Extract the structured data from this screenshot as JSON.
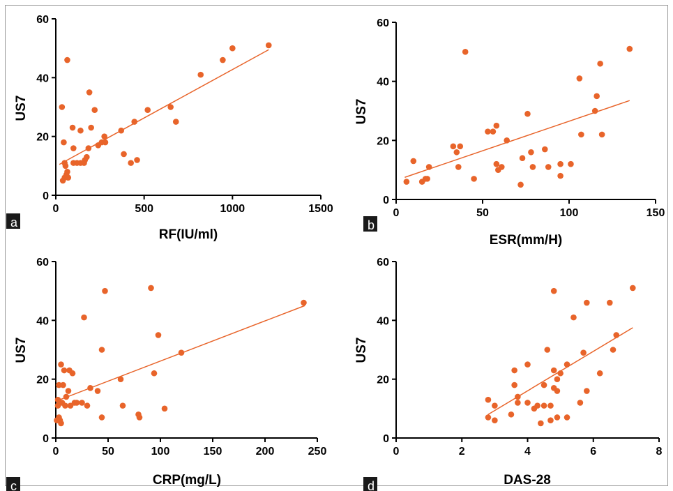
{
  "panels": [
    {
      "label": "a",
      "chart_data": {
        "type": "scatter",
        "xlabel": "RF(IU/ml)",
        "ylabel": "US7",
        "xlim": [
          0,
          1500
        ],
        "ylim": [
          0,
          60
        ],
        "xticks": [
          0,
          500,
          1000,
          1500
        ],
        "yticks": [
          0,
          20,
          40,
          60
        ],
        "grid": false,
        "point_color": "#e8642a",
        "line_color": "#e8642a",
        "points": [
          [
            35,
            30
          ],
          [
            65,
            46
          ],
          [
            45,
            18
          ],
          [
            50,
            11
          ],
          [
            55,
            10
          ],
          [
            40,
            5
          ],
          [
            50,
            6
          ],
          [
            60,
            7
          ],
          [
            65,
            8
          ],
          [
            70,
            6
          ],
          [
            95,
            23
          ],
          [
            100,
            16
          ],
          [
            100,
            11
          ],
          [
            120,
            11
          ],
          [
            140,
            22
          ],
          [
            140,
            11
          ],
          [
            160,
            11
          ],
          [
            165,
            12
          ],
          [
            175,
            13
          ],
          [
            185,
            16
          ],
          [
            190,
            35
          ],
          [
            200,
            23
          ],
          [
            220,
            29
          ],
          [
            240,
            17
          ],
          [
            260,
            18
          ],
          [
            275,
            20
          ],
          [
            280,
            18
          ],
          [
            370,
            22
          ],
          [
            385,
            14
          ],
          [
            425,
            11
          ],
          [
            445,
            25
          ],
          [
            460,
            12
          ],
          [
            520,
            29
          ],
          [
            650,
            30
          ],
          [
            680,
            25
          ],
          [
            820,
            41
          ],
          [
            945,
            46
          ],
          [
            1000,
            50
          ],
          [
            1205,
            51
          ]
        ],
        "fit_line": [
          [
            20,
            10.5
          ],
          [
            1205,
            49.5
          ]
        ]
      }
    },
    {
      "label": "b",
      "chart_data": {
        "type": "scatter",
        "xlabel": "ESR(mm/H)",
        "ylabel": "US7",
        "xlim": [
          0,
          150
        ],
        "ylim": [
          0,
          60
        ],
        "xticks": [
          0,
          50,
          100,
          150
        ],
        "yticks": [
          0,
          20,
          40,
          60
        ],
        "grid": false,
        "point_color": "#e8642a",
        "line_color": "#e8642a",
        "points": [
          [
            6,
            6
          ],
          [
            10,
            13
          ],
          [
            15,
            6
          ],
          [
            17,
            7
          ],
          [
            18,
            7
          ],
          [
            19,
            11
          ],
          [
            33,
            18
          ],
          [
            35,
            16
          ],
          [
            36,
            11
          ],
          [
            37,
            18
          ],
          [
            40,
            50
          ],
          [
            45,
            7
          ],
          [
            53,
            23
          ],
          [
            56,
            23
          ],
          [
            58,
            12
          ],
          [
            58,
            25
          ],
          [
            59,
            10
          ],
          [
            61,
            11
          ],
          [
            64,
            20
          ],
          [
            72,
            5
          ],
          [
            73,
            14
          ],
          [
            76,
            29
          ],
          [
            78,
            16
          ],
          [
            79,
            11
          ],
          [
            86,
            17
          ],
          [
            88,
            11
          ],
          [
            95,
            12
          ],
          [
            95,
            8
          ],
          [
            101,
            12
          ],
          [
            106,
            41
          ],
          [
            107,
            22
          ],
          [
            115,
            30
          ],
          [
            116,
            35
          ],
          [
            118,
            46
          ],
          [
            119,
            22
          ],
          [
            135,
            51
          ]
        ],
        "fit_line": [
          [
            5,
            7.5
          ],
          [
            135,
            33.5
          ]
        ]
      }
    },
    {
      "label": "c",
      "chart_data": {
        "type": "scatter",
        "xlabel": "CRP(mg/L)",
        "ylabel": "US7",
        "xlim": [
          0,
          250
        ],
        "ylim": [
          0,
          60
        ],
        "xticks": [
          0,
          50,
          100,
          150,
          200,
          250
        ],
        "yticks": [
          0,
          20,
          40,
          60
        ],
        "grid": false,
        "point_color": "#e8642a",
        "line_color": "#e8642a",
        "points": [
          [
            1,
            6
          ],
          [
            2,
            11
          ],
          [
            2,
            13
          ],
          [
            3,
            18
          ],
          [
            3,
            7
          ],
          [
            4,
            6
          ],
          [
            4,
            12
          ],
          [
            5,
            25
          ],
          [
            5,
            5
          ],
          [
            6,
            12
          ],
          [
            7,
            18
          ],
          [
            8,
            23
          ],
          [
            9,
            11
          ],
          [
            10,
            14
          ],
          [
            12,
            16
          ],
          [
            13,
            23
          ],
          [
            14,
            11
          ],
          [
            16,
            22
          ],
          [
            18,
            12
          ],
          [
            20,
            12
          ],
          [
            25,
            12
          ],
          [
            27,
            41
          ],
          [
            30,
            11
          ],
          [
            33,
            17
          ],
          [
            40,
            16
          ],
          [
            44,
            30
          ],
          [
            44,
            7
          ],
          [
            47,
            50
          ],
          [
            62,
            20
          ],
          [
            64,
            11
          ],
          [
            91,
            51
          ],
          [
            94,
            22
          ],
          [
            98,
            35
          ],
          [
            104,
            10
          ],
          [
            79,
            8
          ],
          [
            80,
            7
          ],
          [
            120,
            29
          ],
          [
            237,
            46
          ]
        ],
        "fit_line": [
          [
            0,
            12.5
          ],
          [
            238,
            45
          ]
        ]
      }
    },
    {
      "label": "d",
      "chart_data": {
        "type": "scatter",
        "xlabel": "DAS-28",
        "ylabel": "US7",
        "xlim": [
          0,
          8
        ],
        "ylim": [
          0,
          60
        ],
        "xticks": [
          0,
          2,
          4,
          6,
          8
        ],
        "yticks": [
          0,
          20,
          40,
          60
        ],
        "grid": false,
        "point_color": "#e8642a",
        "line_color": "#e8642a",
        "points": [
          [
            2.8,
            7
          ],
          [
            2.8,
            13
          ],
          [
            3.0,
            6
          ],
          [
            3.0,
            11
          ],
          [
            3.5,
            8
          ],
          [
            3.6,
            18
          ],
          [
            3.6,
            23
          ],
          [
            3.7,
            12
          ],
          [
            3.7,
            14
          ],
          [
            4.0,
            25
          ],
          [
            4.0,
            12
          ],
          [
            4.2,
            10
          ],
          [
            4.3,
            11
          ],
          [
            4.4,
            5
          ],
          [
            4.5,
            11
          ],
          [
            4.5,
            18
          ],
          [
            4.6,
            30
          ],
          [
            4.7,
            6
          ],
          [
            4.7,
            11
          ],
          [
            4.8,
            50
          ],
          [
            4.8,
            23
          ],
          [
            4.8,
            17
          ],
          [
            4.9,
            16
          ],
          [
            4.9,
            7
          ],
          [
            4.9,
            20
          ],
          [
            5.0,
            22
          ],
          [
            5.2,
            25
          ],
          [
            5.2,
            7
          ],
          [
            5.4,
            41
          ],
          [
            5.6,
            12
          ],
          [
            5.7,
            29
          ],
          [
            5.8,
            46
          ],
          [
            5.8,
            16
          ],
          [
            6.2,
            22
          ],
          [
            6.5,
            46
          ],
          [
            6.6,
            30
          ],
          [
            6.7,
            35
          ],
          [
            7.2,
            51
          ]
        ],
        "fit_line": [
          [
            2.8,
            8
          ],
          [
            7.2,
            37.5
          ]
        ]
      }
    }
  ]
}
